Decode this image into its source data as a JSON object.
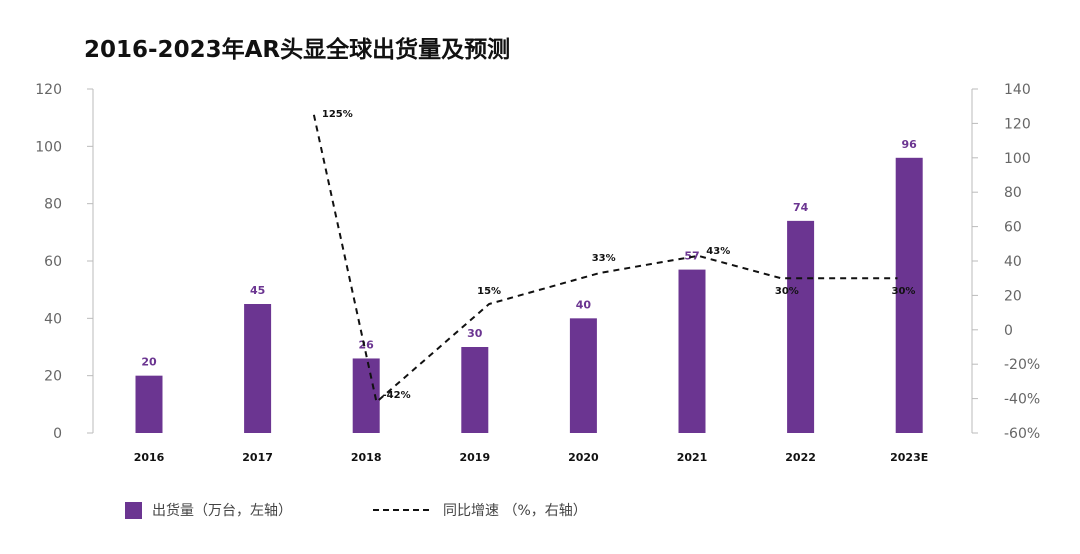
{
  "chart_data": {
    "type": "bar",
    "title": "2016-2023年AR头显全球出货量及预测",
    "categories": [
      "2016",
      "2017",
      "2018",
      "2019",
      "2020",
      "2021",
      "2022",
      "2023E"
    ],
    "series": [
      {
        "name": "出货量（万台，左轴）",
        "type": "bar",
        "axis": "left",
        "values": [
          20,
          45,
          26,
          30,
          40,
          57,
          74,
          96
        ],
        "value_labels": [
          "20",
          "45",
          "26",
          "30",
          "40",
          "57",
          "74",
          "96"
        ],
        "color": "#6b3591"
      },
      {
        "name": "同比增速 （%，右轴）",
        "type": "line",
        "style": "dashed",
        "axis": "right",
        "values": [
          null,
          125,
          -42,
          15,
          33,
          43,
          30,
          30
        ],
        "value_labels": [
          null,
          "125%",
          "-42%",
          "15%",
          "33%",
          "43%",
          "30%",
          "30%"
        ],
        "color": "#111111"
      }
    ],
    "y_left": {
      "ylim": [
        0,
        120
      ],
      "ticks": [
        0,
        20,
        40,
        60,
        80,
        100,
        120
      ],
      "tick_labels": [
        "0",
        "20",
        "40",
        "60",
        "80",
        "100",
        "120"
      ]
    },
    "y_right": {
      "ylim": [
        -60,
        140
      ],
      "ticks": [
        -60,
        -40,
        -20,
        0,
        20,
        40,
        60,
        80,
        100,
        120,
        140
      ],
      "tick_labels": [
        "-60%",
        "-40%",
        "-20%",
        "0",
        "20",
        "40",
        "60",
        "80",
        "100",
        "120",
        "140"
      ]
    },
    "grid": false,
    "legend": "bottom-left"
  }
}
